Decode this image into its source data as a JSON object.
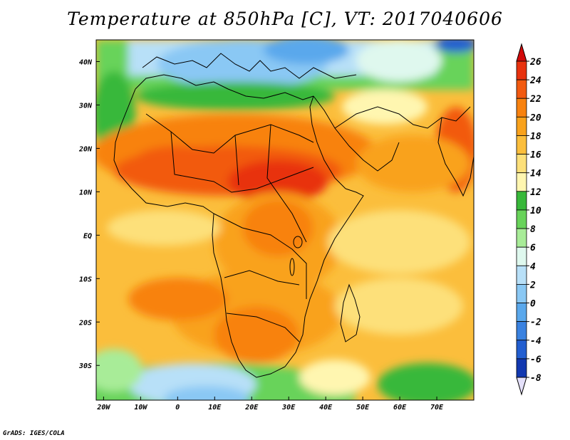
{
  "title": "Temperature at 850hPa [C], VT: 2017040606",
  "footer": "GrADS: IGES/COLA",
  "map": {
    "projection": "lat-lon",
    "lon_range": [
      -22,
      80
    ],
    "lat_range": [
      -38,
      45
    ],
    "lon_ticks": [
      {
        "value": -20,
        "label": "20W"
      },
      {
        "value": -10,
        "label": "10W"
      },
      {
        "value": 0,
        "label": "0"
      },
      {
        "value": 10,
        "label": "10E"
      },
      {
        "value": 20,
        "label": "20E"
      },
      {
        "value": 30,
        "label": "30E"
      },
      {
        "value": 40,
        "label": "40E"
      },
      {
        "value": 50,
        "label": "50E"
      },
      {
        "value": 60,
        "label": "60E"
      },
      {
        "value": 70,
        "label": "70E"
      }
    ],
    "lat_ticks": [
      {
        "value": 40,
        "label": "40N"
      },
      {
        "value": 30,
        "label": "30N"
      },
      {
        "value": 20,
        "label": "20N"
      },
      {
        "value": 10,
        "label": "10N"
      },
      {
        "value": 0,
        "label": "EQ"
      },
      {
        "value": -10,
        "label": "10S"
      },
      {
        "value": -20,
        "label": "20S"
      },
      {
        "value": -30,
        "label": "30S"
      }
    ]
  },
  "colorbar": {
    "orientation": "vertical",
    "placement": "right",
    "levels": [
      26,
      24,
      22,
      20,
      18,
      16,
      14,
      12,
      10,
      8,
      6,
      4,
      2,
      0,
      -2,
      -4,
      -6,
      -8
    ],
    "labels": [
      "26",
      "24",
      "22",
      "20",
      "18",
      "16",
      "14",
      "12",
      "10",
      "8",
      "6",
      "4",
      "2",
      "0",
      "-2",
      "-4",
      "-6",
      "-8"
    ],
    "colors": [
      "#e8320e",
      "#f25a10",
      "#f8820f",
      "#f9a21c",
      "#fbbe3c",
      "#fde07a",
      "#fff6b0",
      "#38b83a",
      "#68d35a",
      "#a8ec98",
      "#dff8ee",
      "#b8e0f8",
      "#8ac8f4",
      "#5aa8ec",
      "#3a82e0",
      "#225ed0",
      "#1238b0",
      "#101a78"
    ],
    "over_color": "#d20a0a",
    "under_color": "#e4e0fa"
  }
}
